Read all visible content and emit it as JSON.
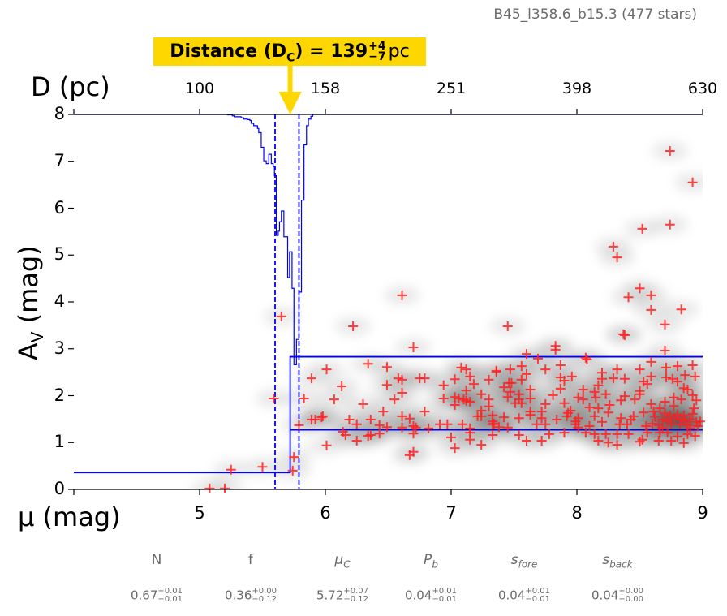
{
  "title": "B45_l358.6_b15.3 (477 stars)",
  "annotation": {
    "prefix": "Distance (D",
    "sub": "C",
    "mid": ") = 139",
    "plus": "+4",
    "minus": "−7",
    "unit": "pc",
    "color": "#ffd700"
  },
  "chart_data": {
    "type": "scatter",
    "xlabel": "μ (mag)",
    "ylabel": {
      "main": "A",
      "sub": "V",
      "rest": " (mag)"
    },
    "top_axis_label": "D (pc)",
    "xlim": [
      4,
      9
    ],
    "ylim": [
      0,
      8
    ],
    "x_ticks": [
      5,
      6,
      7,
      8,
      9
    ],
    "x_tick_labels": [
      "5",
      "6",
      "7",
      "8",
      "9"
    ],
    "y_ticks": [
      0,
      1,
      2,
      3,
      4,
      5,
      6,
      7,
      8
    ],
    "y_tick_labels": [
      "0",
      "1",
      "2",
      "3",
      "4",
      "5",
      "6",
      "7",
      "8"
    ],
    "top_ticks_mu": [
      5,
      6,
      7,
      8,
      9
    ],
    "top_tick_labels": [
      "100",
      "158",
      "251",
      "398",
      "630"
    ],
    "grid": false,
    "colors": {
      "points": "#ff2020",
      "model": "#0000ff",
      "density": "#000000"
    },
    "distance_modulus": {
      "best": 5.72,
      "lower": 5.6,
      "upper": 5.79
    },
    "model": {
      "foreground_av": 0.36,
      "background_band": [
        1.27,
        2.83
      ]
    },
    "posterior_steps": [
      [
        4.0,
        8.0
      ],
      [
        5.22,
        7.99
      ],
      [
        5.26,
        7.97
      ],
      [
        5.28,
        7.95
      ],
      [
        5.33,
        7.93
      ],
      [
        5.35,
        7.9
      ],
      [
        5.38,
        7.89
      ],
      [
        5.4,
        7.87
      ],
      [
        5.41,
        7.81
      ],
      [
        5.43,
        7.76
      ],
      [
        5.46,
        7.7
      ],
      [
        5.47,
        7.61
      ],
      [
        5.49,
        7.3
      ],
      [
        5.51,
        7.01
      ],
      [
        5.53,
        6.95
      ],
      [
        5.55,
        7.15
      ],
      [
        5.57,
        6.95
      ],
      [
        5.585,
        6.89
      ],
      [
        5.595,
        6.69
      ],
      [
        5.61,
        5.42
      ],
      [
        5.625,
        5.51
      ],
      [
        5.635,
        5.71
      ],
      [
        5.65,
        5.94
      ],
      [
        5.67,
        5.39
      ],
      [
        5.7,
        4.52
      ],
      [
        5.715,
        5.07
      ],
      [
        5.735,
        4.29
      ],
      [
        5.75,
        2.66
      ],
      [
        5.77,
        3.2
      ],
      [
        5.79,
        4.21
      ],
      [
        5.81,
        6.17
      ],
      [
        5.83,
        7.35
      ],
      [
        5.85,
        7.76
      ],
      [
        5.865,
        7.9
      ],
      [
        5.885,
        7.96
      ],
      [
        5.9,
        8.0
      ],
      [
        9.0,
        8.0
      ]
    ],
    "points": [
      [
        8.74,
        7.22
      ],
      [
        8.92,
        6.55
      ],
      [
        8.74,
        5.65
      ],
      [
        8.29,
        5.18
      ],
      [
        8.32,
        4.95
      ],
      [
        8.52,
        5.56
      ],
      [
        8.5,
        4.29
      ],
      [
        8.59,
        4.14
      ],
      [
        8.41,
        4.1
      ],
      [
        8.59,
        3.83
      ],
      [
        8.83,
        3.84
      ],
      [
        8.7,
        3.52
      ],
      [
        8.37,
        3.31
      ],
      [
        7.45,
        3.48
      ],
      [
        7.83,
        3.06
      ],
      [
        7.83,
        2.98
      ],
      [
        6.61,
        4.14
      ],
      [
        6.22,
        3.48
      ],
      [
        5.65,
        3.69
      ],
      [
        6.7,
        3.03
      ],
      [
        5.59,
        1.94
      ],
      [
        8.07,
        2.81
      ],
      [
        8.7,
        2.96
      ],
      [
        5.08,
        0.02
      ],
      [
        5.2,
        0.02
      ],
      [
        5.25,
        0.42
      ],
      [
        5.5,
        0.48
      ],
      [
        5.74,
        0.4
      ],
      [
        5.75,
        0.69
      ],
      [
        5.79,
        1.37
      ],
      [
        5.83,
        1.94
      ],
      [
        6.34,
        2.68
      ],
      [
        6.01,
        2.56
      ],
      [
        6.49,
        2.61
      ],
      [
        5.89,
        2.37
      ],
      [
        6.58,
        2.37
      ],
      [
        6.61,
        2.34
      ],
      [
        6.75,
        2.37
      ],
      [
        6.79,
        2.37
      ],
      [
        6.13,
        2.2
      ],
      [
        6.49,
        2.23
      ],
      [
        6.61,
        2.06
      ],
      [
        6.07,
        1.92
      ],
      [
        6.55,
        1.92
      ],
      [
        6.3,
        1.82
      ],
      [
        6.46,
        1.66
      ],
      [
        6.79,
        1.66
      ],
      [
        5.98,
        1.56
      ],
      [
        5.89,
        1.49
      ],
      [
        5.92,
        1.49
      ],
      [
        5.97,
        1.54
      ],
      [
        6.19,
        1.49
      ],
      [
        6.36,
        1.49
      ],
      [
        6.61,
        1.56
      ],
      [
        6.67,
        1.51
      ],
      [
        6.25,
        1.39
      ],
      [
        6.43,
        1.37
      ],
      [
        6.49,
        1.33
      ],
      [
        6.61,
        1.32
      ],
      [
        6.7,
        1.35
      ],
      [
        6.72,
        1.32
      ],
      [
        6.82,
        1.3
      ],
      [
        6.91,
        1.39
      ],
      [
        6.97,
        1.39
      ],
      [
        7.09,
        1.39
      ],
      [
        7.15,
        1.3
      ],
      [
        7.33,
        1.39
      ],
      [
        6.14,
        1.23
      ],
      [
        6.16,
        1.16
      ],
      [
        6.34,
        1.14
      ],
      [
        6.36,
        1.16
      ],
      [
        6.43,
        1.19
      ],
      [
        6.7,
        1.19
      ],
      [
        6.25,
        1.04
      ],
      [
        6.01,
        0.94
      ],
      [
        7.0,
        1.11
      ],
      [
        7.03,
        0.88
      ],
      [
        7.15,
        1.21
      ],
      [
        7.15,
        1.06
      ],
      [
        7.24,
        0.95
      ],
      [
        7.33,
        1.16
      ],
      [
        6.67,
        0.73
      ],
      [
        6.7,
        0.8
      ],
      [
        7.08,
        2.6
      ],
      [
        7.12,
        2.56
      ],
      [
        7.36,
        2.53
      ],
      [
        7.03,
        2.35
      ],
      [
        7.15,
        2.41
      ],
      [
        7.3,
        2.34
      ],
      [
        7.18,
        2.25
      ],
      [
        6.94,
        2.22
      ],
      [
        7.12,
        2.11
      ],
      [
        7.24,
        2.03
      ],
      [
        6.94,
        1.94
      ],
      [
        7.03,
        1.97
      ],
      [
        7.06,
        1.94
      ],
      [
        7.1,
        1.92
      ],
      [
        7.12,
        1.89
      ],
      [
        7.15,
        1.87
      ],
      [
        7.3,
        1.92
      ],
      [
        7.03,
        1.8
      ],
      [
        7.3,
        1.77
      ],
      [
        7.24,
        1.68
      ],
      [
        7.21,
        1.56
      ],
      [
        7.24,
        1.56
      ],
      [
        7.33,
        1.58
      ],
      [
        7.33,
        1.45
      ],
      [
        8.38,
        3.29
      ],
      [
        7.6,
        2.89
      ],
      [
        7.69,
        2.79
      ],
      [
        8.08,
        2.77
      ],
      [
        8.59,
        2.72
      ],
      [
        8.71,
        2.6
      ],
      [
        8.8,
        2.63
      ],
      [
        8.92,
        2.65
      ],
      [
        8.5,
        2.56
      ],
      [
        8.32,
        2.56
      ],
      [
        8.2,
        2.49
      ],
      [
        7.87,
        2.65
      ],
      [
        7.75,
        2.56
      ],
      [
        7.56,
        2.63
      ],
      [
        7.47,
        2.56
      ],
      [
        7.36,
        2.51
      ],
      [
        7.6,
        2.46
      ],
      [
        7.56,
        2.34
      ],
      [
        7.87,
        2.39
      ],
      [
        7.9,
        2.32
      ],
      [
        7.96,
        2.41
      ],
      [
        8.2,
        2.36
      ],
      [
        8.29,
        2.37
      ],
      [
        8.38,
        2.36
      ],
      [
        8.53,
        2.3
      ],
      [
        8.56,
        2.25
      ],
      [
        8.59,
        2.41
      ],
      [
        8.71,
        2.39
      ],
      [
        8.76,
        2.36
      ],
      [
        8.8,
        2.3
      ],
      [
        8.86,
        2.44
      ],
      [
        8.94,
        2.41
      ],
      [
        7.46,
        2.27
      ],
      [
        7.48,
        2.27
      ],
      [
        7.42,
        2.18
      ],
      [
        7.47,
        2.08
      ],
      [
        7.63,
        2.13
      ],
      [
        7.87,
        2.15
      ],
      [
        8.17,
        2.22
      ],
      [
        8.05,
        2.13
      ],
      [
        8.14,
        2.08
      ],
      [
        8.85,
        2.16
      ],
      [
        8.88,
        2.13
      ],
      [
        8.5,
        2.1
      ],
      [
        7.45,
        1.97
      ],
      [
        7.54,
        2.03
      ],
      [
        7.54,
        1.92
      ],
      [
        7.63,
        1.94
      ],
      [
        7.81,
        2.01
      ],
      [
        8.01,
        1.96
      ],
      [
        8.05,
        1.92
      ],
      [
        8.15,
        1.96
      ],
      [
        8.23,
        2.03
      ],
      [
        8.38,
        1.99
      ],
      [
        8.46,
        1.92
      ],
      [
        8.5,
        2.03
      ],
      [
        8.77,
        1.96
      ],
      [
        8.83,
        1.92
      ],
      [
        8.92,
        2.01
      ],
      [
        8.95,
        1.9
      ],
      [
        8.7,
        1.87
      ],
      [
        7.51,
        1.84
      ],
      [
        7.56,
        1.84
      ],
      [
        7.75,
        1.82
      ],
      [
        7.9,
        1.84
      ],
      [
        8.1,
        1.75
      ],
      [
        8.17,
        1.73
      ],
      [
        8.26,
        1.8
      ],
      [
        8.35,
        1.9
      ],
      [
        8.59,
        1.82
      ],
      [
        8.66,
        1.73
      ],
      [
        8.77,
        1.78
      ],
      [
        8.93,
        1.73
      ],
      [
        7.63,
        1.66
      ],
      [
        7.63,
        1.59
      ],
      [
        7.72,
        1.66
      ],
      [
        7.93,
        1.63
      ],
      [
        7.95,
        1.68
      ],
      [
        7.42,
        1.54
      ],
      [
        7.54,
        1.52
      ],
      [
        7.72,
        1.52
      ],
      [
        7.84,
        1.49
      ],
      [
        7.92,
        1.56
      ],
      [
        8.01,
        1.52
      ],
      [
        7.99,
        1.45
      ],
      [
        8.14,
        1.56
      ],
      [
        8.25,
        1.64
      ],
      [
        8.35,
        1.52
      ],
      [
        8.43,
        1.49
      ],
      [
        8.45,
        1.56
      ],
      [
        8.53,
        1.64
      ],
      [
        8.61,
        1.66
      ],
      [
        8.68,
        1.49
      ],
      [
        8.74,
        1.58
      ],
      [
        8.83,
        1.49
      ],
      [
        8.86,
        1.45
      ],
      [
        8.92,
        1.61
      ],
      [
        8.95,
        1.44
      ],
      [
        7.34,
        1.4
      ],
      [
        7.38,
        1.33
      ],
      [
        7.45,
        1.32
      ],
      [
        7.68,
        1.39
      ],
      [
        7.75,
        1.39
      ],
      [
        7.99,
        1.39
      ],
      [
        8.01,
        1.32
      ],
      [
        8.1,
        1.35
      ],
      [
        8.2,
        1.44
      ],
      [
        8.34,
        1.39
      ],
      [
        8.4,
        1.39
      ],
      [
        8.55,
        1.35
      ],
      [
        8.65,
        1.37
      ],
      [
        8.68,
        1.32
      ],
      [
        8.75,
        1.4
      ],
      [
        8.82,
        1.39
      ],
      [
        8.88,
        1.37
      ],
      [
        8.96,
        1.35
      ],
      [
        7.54,
        1.16
      ],
      [
        7.78,
        1.18
      ],
      [
        7.9,
        1.21
      ],
      [
        8.07,
        1.21
      ],
      [
        8.14,
        1.18
      ],
      [
        8.23,
        1.18
      ],
      [
        8.32,
        1.18
      ],
      [
        8.41,
        1.18
      ],
      [
        8.56,
        1.21
      ],
      [
        8.66,
        1.21
      ],
      [
        8.72,
        1.21
      ],
      [
        8.8,
        1.13
      ],
      [
        8.88,
        1.18
      ],
      [
        8.94,
        1.14
      ],
      [
        7.6,
        1.04
      ],
      [
        7.72,
        1.04
      ],
      [
        8.17,
        1.04
      ],
      [
        8.25,
        1.0
      ],
      [
        8.32,
        0.95
      ],
      [
        8.5,
        1.02
      ],
      [
        8.52,
        1.06
      ],
      [
        8.65,
        1.04
      ],
      [
        8.75,
        1.04
      ],
      [
        8.85,
        0.99
      ],
      [
        8.62,
        1.55
      ],
      [
        8.7,
        1.62
      ],
      [
        8.78,
        1.52
      ],
      [
        8.85,
        1.58
      ],
      [
        8.9,
        1.5
      ],
      [
        8.98,
        1.45
      ],
      [
        8.6,
        1.4
      ],
      [
        8.72,
        1.45
      ],
      [
        8.8,
        1.6
      ],
      [
        8.9,
        1.3
      ]
    ]
  },
  "parameters": [
    {
      "label": "N",
      "sub": "",
      "value": "0.67",
      "plus": "+0.01",
      "minus": "−0.01"
    },
    {
      "label": "f",
      "sub": "",
      "value": "0.36",
      "plus": "+0.00",
      "minus": "−0.12"
    },
    {
      "label": "μ",
      "sub": "C",
      "value": "5.72",
      "plus": "+0.07",
      "minus": "−0.12"
    },
    {
      "label": "P",
      "sub": "b",
      "value": "0.04",
      "plus": "+0.01",
      "minus": "−0.01"
    },
    {
      "label": "s",
      "sub": "fore",
      "value": "0.04",
      "plus": "+0.01",
      "minus": "−0.01"
    },
    {
      "label": "s",
      "sub": "back",
      "value": "0.04",
      "plus": "+0.00",
      "minus": "−0.00"
    }
  ]
}
